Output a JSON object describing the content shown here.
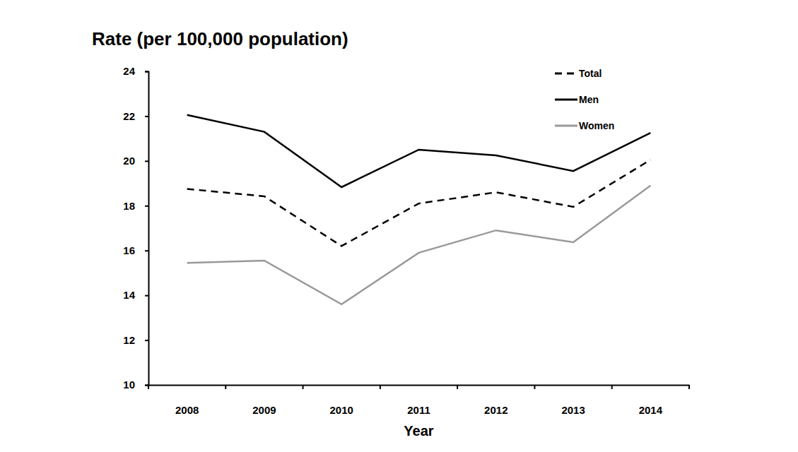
{
  "chart_data": {
    "type": "line",
    "y_label": "Rate (per 100,000 population)",
    "x_label": "Year",
    "categories": [
      "2008",
      "2009",
      "2010",
      "2011",
      "2012",
      "2013",
      "2014"
    ],
    "series": [
      {
        "name": "Total",
        "color": "#000000",
        "line_style": "dashed",
        "values": [
          18.75,
          18.42,
          16.2,
          18.1,
          18.6,
          17.95,
          20.05
        ]
      },
      {
        "name": "Men",
        "color": "#000000",
        "line_style": "solid",
        "values": [
          22.05,
          21.3,
          18.83,
          20.5,
          20.25,
          19.55,
          21.25
        ]
      },
      {
        "name": "Women",
        "color": "#999999",
        "line_style": "solid",
        "values": [
          15.45,
          15.55,
          13.6,
          15.9,
          16.9,
          16.37,
          18.9
        ]
      }
    ],
    "ylim": [
      10,
      24
    ],
    "yticks": [
      10,
      12,
      14,
      16,
      18,
      20,
      22,
      24
    ],
    "grid": false,
    "legend": "upper right"
  }
}
